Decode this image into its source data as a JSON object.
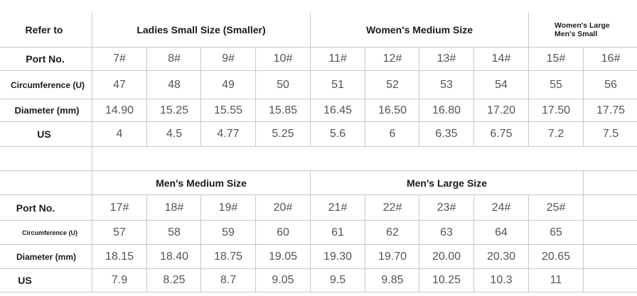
{
  "table": {
    "top": {
      "refer_label": "Refer to",
      "group_headers": [
        "Ladies Small Size (Smaller)",
        "Women's Medium Size"
      ],
      "group_last_line1": "Women's Large",
      "group_last_line2": "Men's Small",
      "row_labels": [
        "Port No.",
        "Circumference (U)",
        "Diameter (mm)",
        "US"
      ],
      "rows": [
        [
          "7#",
          "8#",
          "9#",
          "10#",
          "11#",
          "12#",
          "13#",
          "14#",
          "15#",
          "16#"
        ],
        [
          "47",
          "48",
          "49",
          "50",
          "51",
          "52",
          "53",
          "54",
          "55",
          "56"
        ],
        [
          "14.90",
          "15.25",
          "15.55",
          "15.85",
          "16.45",
          "16.50",
          "16.80",
          "17.20",
          "17.50",
          "17.75"
        ],
        [
          "4",
          "4.5",
          "4.77",
          "5.25",
          "5.6",
          "6",
          "6.35",
          "6.75",
          "7.2",
          "7.5"
        ]
      ]
    },
    "bottom": {
      "group_headers": [
        "Men's Medium Size",
        "Men's Large Size"
      ],
      "row_labels": [
        "Port No.",
        "Circumference (U)",
        "Diameter (mm)",
        "US"
      ],
      "rows": [
        [
          "17#",
          "18#",
          "19#",
          "20#",
          "21#",
          "22#",
          "23#",
          "24#",
          "25#"
        ],
        [
          "57",
          "58",
          "59",
          "60",
          "61",
          "62",
          "63",
          "64",
          "65"
        ],
        [
          "18.15",
          "18.40",
          "18.75",
          "19.05",
          "19.30",
          "19.70",
          "20.00",
          "20.30",
          "20.65"
        ],
        [
          "7.9",
          "8.25",
          "8.7",
          "9.05",
          "9.5",
          "9.85",
          "10.25",
          "10.3",
          "11"
        ]
      ]
    }
  }
}
